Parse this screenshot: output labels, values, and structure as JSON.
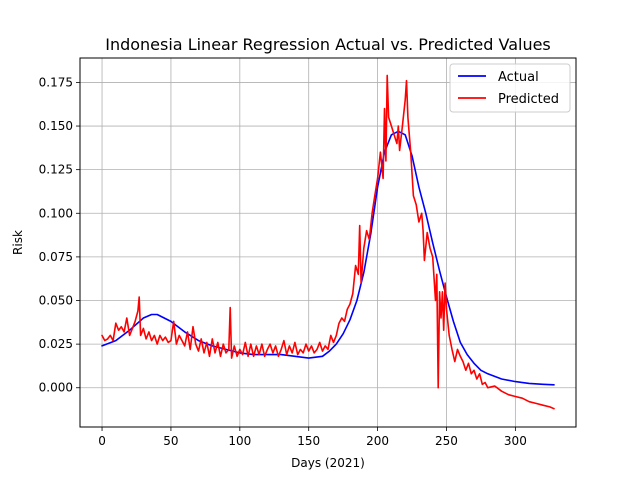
{
  "chart_data": {
    "type": "line",
    "title": "Indonesia Linear Regression Actual vs. Predicted Values",
    "xlabel": "Days (2021)",
    "ylabel": "Risk",
    "xlim": [
      -16,
      344
    ],
    "ylim": [
      -0.0225,
      0.189
    ],
    "xticks": [
      0,
      50,
      100,
      150,
      200,
      250,
      300
    ],
    "xtick_labels": [
      "0",
      "50",
      "100",
      "150",
      "200",
      "250",
      "300"
    ],
    "yticks": [
      0.0,
      0.025,
      0.05,
      0.075,
      0.1,
      0.125,
      0.15,
      0.175
    ],
    "ytick_labels": [
      "0.000",
      "0.025",
      "0.050",
      "0.075",
      "0.100",
      "0.125",
      "0.150",
      "0.175"
    ],
    "grid": true,
    "legend_position": "top-right",
    "series": [
      {
        "name": "Actual",
        "color": "#0000ff",
        "x": [
          0,
          10,
          20,
          30,
          36,
          40,
          50,
          60,
          70,
          80,
          90,
          100,
          110,
          120,
          130,
          140,
          150,
          160,
          165,
          170,
          175,
          180,
          185,
          190,
          195,
          200,
          205,
          210,
          215,
          220,
          225,
          230,
          235,
          240,
          245,
          250,
          255,
          260,
          265,
          270,
          275,
          280,
          290,
          300,
          310,
          320,
          328
        ],
        "y": [
          0.024,
          0.027,
          0.033,
          0.04,
          0.042,
          0.042,
          0.038,
          0.032,
          0.027,
          0.024,
          0.022,
          0.02,
          0.019,
          0.019,
          0.019,
          0.018,
          0.017,
          0.018,
          0.021,
          0.025,
          0.031,
          0.039,
          0.05,
          0.066,
          0.088,
          0.115,
          0.135,
          0.145,
          0.147,
          0.145,
          0.133,
          0.115,
          0.1,
          0.083,
          0.067,
          0.052,
          0.038,
          0.026,
          0.019,
          0.014,
          0.01,
          0.008,
          0.005,
          0.0035,
          0.0025,
          0.002,
          0.0017
        ]
      },
      {
        "name": "Predicted",
        "color": "#ff0000",
        "x": [
          0,
          2,
          4,
          6,
          8,
          10,
          12,
          14,
          16,
          18,
          20,
          22,
          24,
          26,
          27,
          28,
          30,
          32,
          34,
          36,
          38,
          40,
          42,
          44,
          46,
          48,
          50,
          52,
          54,
          56,
          58,
          60,
          62,
          64,
          66,
          67,
          68,
          70,
          72,
          74,
          76,
          78,
          80,
          82,
          84,
          86,
          88,
          90,
          92,
          93,
          94,
          96,
          98,
          100,
          102,
          104,
          106,
          108,
          110,
          112,
          114,
          116,
          118,
          120,
          122,
          124,
          126,
          128,
          130,
          132,
          134,
          136,
          138,
          140,
          142,
          144,
          146,
          148,
          150,
          152,
          154,
          156,
          158,
          160,
          162,
          164,
          166,
          168,
          170,
          172,
          174,
          176,
          178,
          180,
          182,
          184,
          186,
          187,
          188,
          190,
          192,
          194,
          196,
          198,
          200,
          202,
          204,
          205,
          206,
          207,
          208,
          210,
          212,
          214,
          215,
          216,
          218,
          220,
          221,
          222,
          224,
          226,
          228,
          230,
          232,
          233,
          234,
          236,
          238,
          240,
          242,
          243,
          244,
          245,
          246,
          247,
          248,
          249,
          250,
          252,
          254,
          256,
          258,
          260,
          262,
          264,
          266,
          268,
          270,
          272,
          274,
          276,
          278,
          280,
          285,
          290,
          295,
          300,
          305,
          310,
          315,
          320,
          325,
          328
        ],
        "y": [
          0.03,
          0.027,
          0.028,
          0.03,
          0.027,
          0.037,
          0.033,
          0.035,
          0.032,
          0.04,
          0.03,
          0.034,
          0.038,
          0.044,
          0.052,
          0.03,
          0.034,
          0.028,
          0.032,
          0.027,
          0.03,
          0.025,
          0.03,
          0.027,
          0.029,
          0.026,
          0.027,
          0.038,
          0.025,
          0.03,
          0.027,
          0.024,
          0.032,
          0.022,
          0.035,
          0.03,
          0.025,
          0.021,
          0.028,
          0.02,
          0.026,
          0.018,
          0.028,
          0.02,
          0.026,
          0.018,
          0.025,
          0.02,
          0.022,
          0.046,
          0.017,
          0.024,
          0.018,
          0.022,
          0.019,
          0.026,
          0.018,
          0.025,
          0.018,
          0.024,
          0.019,
          0.025,
          0.018,
          0.022,
          0.025,
          0.02,
          0.024,
          0.018,
          0.022,
          0.027,
          0.019,
          0.024,
          0.02,
          0.026,
          0.019,
          0.022,
          0.02,
          0.025,
          0.021,
          0.024,
          0.02,
          0.022,
          0.026,
          0.021,
          0.024,
          0.022,
          0.03,
          0.026,
          0.03,
          0.037,
          0.04,
          0.038,
          0.045,
          0.048,
          0.054,
          0.07,
          0.065,
          0.093,
          0.06,
          0.08,
          0.09,
          0.085,
          0.1,
          0.11,
          0.12,
          0.135,
          0.12,
          0.16,
          0.13,
          0.179,
          0.155,
          0.15,
          0.145,
          0.14,
          0.15,
          0.136,
          0.15,
          0.165,
          0.176,
          0.155,
          0.135,
          0.11,
          0.105,
          0.095,
          0.1,
          0.09,
          0.073,
          0.089,
          0.08,
          0.075,
          0.05,
          0.065,
          0.0,
          0.055,
          0.04,
          0.055,
          0.033,
          0.06,
          0.045,
          0.03,
          0.022,
          0.015,
          0.022,
          0.018,
          0.015,
          0.01,
          0.014,
          0.008,
          0.01,
          0.005,
          0.008,
          0.002,
          0.003,
          0.0,
          0.001,
          -0.002,
          -0.004,
          -0.005,
          -0.006,
          -0.008,
          -0.009,
          -0.01,
          -0.011,
          -0.012
        ]
      }
    ]
  }
}
